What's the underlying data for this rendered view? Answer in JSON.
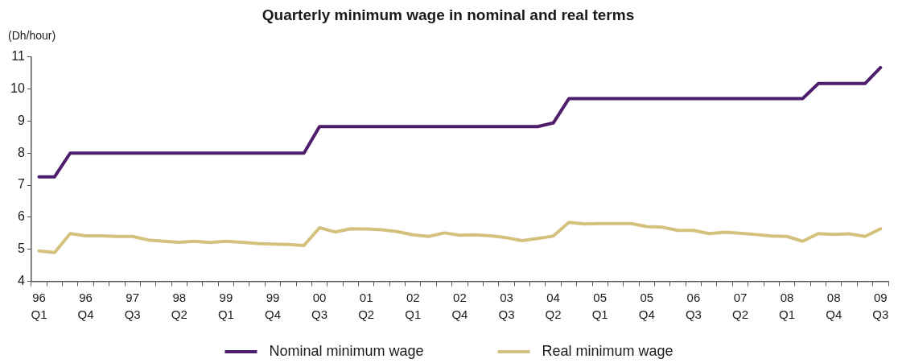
{
  "chart_data": {
    "type": "line",
    "title": "Quarterly minimum wage in nominal and real terms",
    "ylabel": "(Dh/hour)",
    "categories": [
      "96\nQ1",
      null,
      null,
      "96\nQ4",
      null,
      null,
      "97\nQ3",
      null,
      null,
      "98\nQ2",
      null,
      null,
      "99\nQ1",
      null,
      null,
      "99\nQ4",
      null,
      null,
      "00\nQ3",
      null,
      null,
      "01\nQ2",
      null,
      null,
      "02\nQ1",
      null,
      null,
      "02\nQ4",
      null,
      null,
      "03\nQ3",
      null,
      null,
      "04\nQ2",
      null,
      null,
      "05\nQ1",
      null,
      null,
      "05\nQ4",
      null,
      null,
      "06\nQ3",
      null,
      null,
      "07\nQ2",
      null,
      null,
      "08\nQ1",
      null,
      null,
      "08\nQ4",
      null,
      null,
      "09\nQ3"
    ],
    "series": [
      {
        "name": "Nominal minimum wage",
        "color": "#4e1d6c",
        "values": [
          7.26,
          7.26,
          8.0,
          8.0,
          8.0,
          8.0,
          8.0,
          8.0,
          8.0,
          8.0,
          8.0,
          8.0,
          8.0,
          8.0,
          8.0,
          8.0,
          8.0,
          8.0,
          8.83,
          8.83,
          8.83,
          8.83,
          8.83,
          8.83,
          8.83,
          8.83,
          8.83,
          8.83,
          8.83,
          8.83,
          8.83,
          8.83,
          8.83,
          8.94,
          9.7,
          9.7,
          9.7,
          9.7,
          9.7,
          9.7,
          9.7,
          9.7,
          9.7,
          9.7,
          9.7,
          9.7,
          9.7,
          9.7,
          9.7,
          9.7,
          10.17,
          10.17,
          10.17,
          10.17,
          10.67
        ]
      },
      {
        "name": "Real minimum wage",
        "color": "#d5c17e",
        "values": [
          4.95,
          4.9,
          5.49,
          5.42,
          5.42,
          5.4,
          5.4,
          5.29,
          5.25,
          5.22,
          5.25,
          5.21,
          5.25,
          5.22,
          5.18,
          5.16,
          5.15,
          5.12,
          5.67,
          5.54,
          5.64,
          5.63,
          5.61,
          5.55,
          5.45,
          5.4,
          5.51,
          5.44,
          5.45,
          5.42,
          5.36,
          5.27,
          5.34,
          5.41,
          5.84,
          5.79,
          5.8,
          5.8,
          5.8,
          5.71,
          5.69,
          5.59,
          5.59,
          5.49,
          5.53,
          5.5,
          5.46,
          5.41,
          5.4,
          5.25,
          5.49,
          5.46,
          5.48,
          5.4,
          5.64
        ]
      }
    ],
    "ylim": [
      4,
      11
    ],
    "yticks": [
      4,
      5,
      6,
      7,
      8,
      9,
      10,
      11
    ],
    "grid": false,
    "legend": "bottom",
    "marker": "none",
    "line_style": "solid"
  }
}
